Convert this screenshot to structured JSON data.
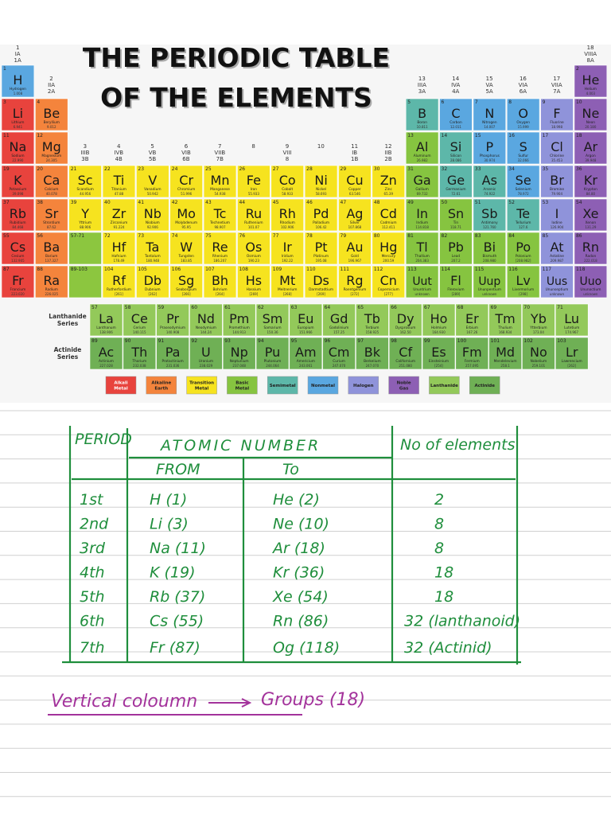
{
  "header": {
    "title_lines": [
      "THE PERIODIC TABLE",
      "OF THE ELEMENTS"
    ]
  },
  "groups": [
    [
      "1",
      "IA",
      "1A"
    ],
    [
      "2",
      "IIA",
      "2A"
    ],
    [
      "3",
      "IIIB",
      "3B"
    ],
    [
      "4",
      "IVB",
      "4B"
    ],
    [
      "5",
      "VB",
      "5B"
    ],
    [
      "6",
      "VIB",
      "6B"
    ],
    [
      "7",
      "VIIB",
      "7B"
    ],
    [
      "8"
    ],
    [
      "9",
      "VIII",
      "8"
    ],
    [
      "10"
    ],
    [
      "11",
      "IB",
      "1B"
    ],
    [
      "12",
      "IIB",
      "2B"
    ],
    [
      "13",
      "IIIA",
      "3A"
    ],
    [
      "14",
      "IVA",
      "4A"
    ],
    [
      "15",
      "VA",
      "5A"
    ],
    [
      "16",
      "VIA",
      "6A"
    ],
    [
      "17",
      "VIIA",
      "7A"
    ],
    [
      "18",
      "VIIIA",
      "8A"
    ]
  ],
  "placeholders": [
    "57-71",
    "89-103"
  ],
  "series_labels": [
    [
      "Lanthanide",
      "Series"
    ],
    [
      "Actinide",
      "Series"
    ]
  ],
  "categories": [
    {
      "label": [
        "Alkali",
        "Metal"
      ],
      "color": "#e8433d",
      "elements": [
        [
          3,
          "Li",
          "Lithium",
          "6.941"
        ],
        [
          11,
          "Na",
          "Sodium",
          "22.990"
        ],
        [
          19,
          "K",
          "Potassium",
          "39.098"
        ],
        [
          37,
          "Rb",
          "Rubidium",
          "84.468"
        ],
        [
          55,
          "Cs",
          "Cesium",
          "132.905"
        ],
        [
          87,
          "Fr",
          "Francium",
          "223.020"
        ]
      ]
    },
    {
      "label": [
        "Alkaline",
        "Earth"
      ],
      "color": "#f4843c",
      "elements": [
        [
          4,
          "Be",
          "Beryllium",
          "9.012"
        ],
        [
          12,
          "Mg",
          "Magnesium",
          "24.305"
        ],
        [
          20,
          "Ca",
          "Calcium",
          "40.078"
        ],
        [
          38,
          "Sr",
          "Strontium",
          "87.62"
        ],
        [
          56,
          "Ba",
          "Barium",
          "137.327"
        ],
        [
          88,
          "Ra",
          "Radium",
          "226.025"
        ]
      ]
    },
    {
      "label": [
        "Transition",
        "Metal"
      ],
      "color": "#f6e31f",
      "elements": [
        [
          21,
          "Sc",
          "Scandium",
          "44.956"
        ],
        [
          22,
          "Ti",
          "Titanium",
          "47.88"
        ],
        [
          23,
          "V",
          "Vanadium",
          "50.942"
        ],
        [
          24,
          "Cr",
          "Chromium",
          "51.996"
        ],
        [
          25,
          "Mn",
          "Manganese",
          "54.938"
        ],
        [
          26,
          "Fe",
          "Iron",
          "55.933"
        ],
        [
          27,
          "Co",
          "Cobalt",
          "58.933"
        ],
        [
          28,
          "Ni",
          "Nickel",
          "58.693"
        ],
        [
          29,
          "Cu",
          "Copper",
          "63.546"
        ],
        [
          30,
          "Zn",
          "Zinc",
          "65.39"
        ],
        [
          39,
          "Y",
          "Yttrium",
          "88.906"
        ],
        [
          40,
          "Zr",
          "Zirconium",
          "91.224"
        ],
        [
          41,
          "Nb",
          "Niobium",
          "92.906"
        ],
        [
          42,
          "Mo",
          "Molybdenum",
          "95.95"
        ],
        [
          43,
          "Tc",
          "Technetium",
          "98.907"
        ],
        [
          44,
          "Ru",
          "Ruthenium",
          "101.07"
        ],
        [
          45,
          "Rh",
          "Rhodium",
          "102.906"
        ],
        [
          46,
          "Pd",
          "Palladium",
          "106.42"
        ],
        [
          47,
          "Ag",
          "Silver",
          "107.868"
        ],
        [
          48,
          "Cd",
          "Cadmium",
          "112.411"
        ],
        [
          72,
          "Hf",
          "Hafnium",
          "178.49"
        ],
        [
          73,
          "Ta",
          "Tantalum",
          "180.948"
        ],
        [
          74,
          "W",
          "Tungsten",
          "183.85"
        ],
        [
          75,
          "Re",
          "Rhenium",
          "186.207"
        ],
        [
          76,
          "Os",
          "Osmium",
          "190.23"
        ],
        [
          77,
          "Ir",
          "Iridium",
          "192.22"
        ],
        [
          78,
          "Pt",
          "Platinum",
          "195.08"
        ],
        [
          79,
          "Au",
          "Gold",
          "196.967"
        ],
        [
          80,
          "Hg",
          "Mercury",
          "200.59"
        ],
        [
          104,
          "Rf",
          "Rutherfordium",
          "[261]"
        ],
        [
          105,
          "Db",
          "Dubnium",
          "[262]"
        ],
        [
          106,
          "Sg",
          "Seaborgium",
          "[266]"
        ],
        [
          107,
          "Bh",
          "Bohrium",
          "[264]"
        ],
        [
          108,
          "Hs",
          "Hassium",
          "[269]"
        ],
        [
          109,
          "Mt",
          "Meitnerium",
          "[268]"
        ],
        [
          110,
          "Ds",
          "Darmstadtium",
          "[269]"
        ],
        [
          111,
          "Rg",
          "Roentgenium",
          "[272]"
        ],
        [
          112,
          "Cn",
          "Copernicium",
          "[277]"
        ]
      ]
    },
    {
      "label": [
        "Basic",
        "Metal"
      ],
      "color": "#86c440",
      "elements": [
        [
          13,
          "Al",
          "Aluminum",
          "26.982"
        ],
        [
          31,
          "Ga",
          "Gallium",
          "69.732"
        ],
        [
          49,
          "In",
          "Indium",
          "114.818"
        ],
        [
          50,
          "Sn",
          "Tin",
          "118.71"
        ],
        [
          81,
          "Tl",
          "Thallium",
          "204.383"
        ],
        [
          82,
          "Pb",
          "Lead",
          "207.2"
        ],
        [
          83,
          "Bi",
          "Bismuth",
          "208.980"
        ],
        [
          84,
          "Po",
          "Polonium",
          "[208.982]"
        ],
        [
          113,
          "Uut",
          "Ununtrium",
          "unknown"
        ],
        [
          114,
          "Fl",
          "Flerovium",
          "[289]"
        ],
        [
          115,
          "Uup",
          "Ununpentium",
          "unknown"
        ],
        [
          116,
          "Lv",
          "Livermorium",
          "[298]"
        ]
      ]
    },
    {
      "label": [
        "Semimetal"
      ],
      "color": "#5db7a9",
      "elements": [
        [
          5,
          "B",
          "Boron",
          "10.811"
        ],
        [
          14,
          "Si",
          "Silicon",
          "28.086"
        ],
        [
          32,
          "Ge",
          "Germanium",
          "72.61"
        ],
        [
          33,
          "As",
          "Arsenic",
          "74.922"
        ],
        [
          51,
          "Sb",
          "Antimony",
          "121.760"
        ],
        [
          52,
          "Te",
          "Tellurium",
          "127.6"
        ]
      ]
    },
    {
      "label": [
        "Nonmetal"
      ],
      "color": "#5aa7e0",
      "elements": [
        [
          1,
          "H",
          "Hydrogen",
          "1.008"
        ],
        [
          6,
          "C",
          "Carbon",
          "12.011"
        ],
        [
          7,
          "N",
          "Nitrogen",
          "14.007"
        ],
        [
          8,
          "O",
          "Oxygen",
          "15.999"
        ],
        [
          15,
          "P",
          "Phosphorus",
          "30.974"
        ],
        [
          16,
          "S",
          "Sulfur",
          "32.066"
        ],
        [
          34,
          "Se",
          "Selenium",
          "78.972"
        ]
      ]
    },
    {
      "label": [
        "Halogen"
      ],
      "color": "#8f93da",
      "elements": [
        [
          9,
          "F",
          "Fluorine",
          "18.998"
        ],
        [
          17,
          "Cl",
          "Chlorine",
          "35.453"
        ],
        [
          35,
          "Br",
          "Bromine",
          "79.904"
        ],
        [
          53,
          "I",
          "Iodine",
          "126.904"
        ],
        [
          85,
          "At",
          "Astatine",
          "209.987"
        ],
        [
          117,
          "Uus",
          "Ununseptium",
          "unknown"
        ]
      ]
    },
    {
      "label": [
        "Noble",
        "Gas"
      ],
      "color": "#8d5fb4",
      "elements": [
        [
          2,
          "He",
          "Helium",
          "4.003"
        ],
        [
          10,
          "Ne",
          "Neon",
          "20.180"
        ],
        [
          18,
          "Ar",
          "Argon",
          "39.948"
        ],
        [
          36,
          "Kr",
          "Krypton",
          "84.80"
        ],
        [
          54,
          "Xe",
          "Xenon",
          "131.29"
        ],
        [
          86,
          "Rn",
          "Radon",
          "222.018"
        ],
        [
          118,
          "Uuo",
          "Ununoctium",
          "unknown"
        ]
      ]
    },
    {
      "label": [
        "Lanthanide"
      ],
      "color": "#93c95a",
      "elements": [
        [
          57,
          "La",
          "Lanthanum",
          "138.906"
        ],
        [
          58,
          "Ce",
          "Cerium",
          "140.115"
        ],
        [
          59,
          "Pr",
          "Praseodymium",
          "140.908"
        ],
        [
          60,
          "Nd",
          "Neodymium",
          "144.24"
        ],
        [
          61,
          "Pm",
          "Promethium",
          "144.913"
        ],
        [
          62,
          "Sm",
          "Samarium",
          "150.36"
        ],
        [
          63,
          "Eu",
          "Europium",
          "151.966"
        ],
        [
          64,
          "Gd",
          "Gadolinium",
          "157.25"
        ],
        [
          65,
          "Tb",
          "Terbium",
          "158.925"
        ],
        [
          66,
          "Dy",
          "Dysprosium",
          "162.50"
        ],
        [
          67,
          "Ho",
          "Holmium",
          "164.930"
        ],
        [
          68,
          "Er",
          "Erbium",
          "167.26"
        ],
        [
          69,
          "Tm",
          "Thulium",
          "168.934"
        ],
        [
          70,
          "Yb",
          "Ytterbium",
          "173.04"
        ],
        [
          71,
          "Lu",
          "Lutetium",
          "174.967"
        ]
      ]
    },
    {
      "label": [
        "Actinide"
      ],
      "color": "#6fb055",
      "elements": [
        [
          89,
          "Ac",
          "Actinium",
          "227.028"
        ],
        [
          90,
          "Th",
          "Thorium",
          "232.038"
        ],
        [
          91,
          "Pa",
          "Protactinium",
          "231.036"
        ],
        [
          92,
          "U",
          "Uranium",
          "238.029"
        ],
        [
          93,
          "Np",
          "Neptunium",
          "237.048"
        ],
        [
          94,
          "Pu",
          "Plutonium",
          "244.064"
        ],
        [
          95,
          "Am",
          "Americium",
          "243.061"
        ],
        [
          96,
          "Cm",
          "Curium",
          "247.070"
        ],
        [
          97,
          "Bk",
          "Berkelium",
          "247.070"
        ],
        [
          98,
          "Cf",
          "Californium",
          "251.080"
        ],
        [
          99,
          "Es",
          "Einsteinium",
          "[254]"
        ],
        [
          100,
          "Fm",
          "Fermium",
          "257.095"
        ],
        [
          101,
          "Md",
          "Mendelevium",
          "258.1"
        ],
        [
          102,
          "No",
          "Nobelium",
          "259.101"
        ],
        [
          103,
          "Lr",
          "Lawrencium",
          "[262]"
        ]
      ]
    }
  ],
  "notes": {
    "headers": {
      "period": "PERIOD",
      "atomic_number": "ATOMIC NUMBER",
      "from": "FROM",
      "to": "To",
      "count": "No of elements"
    },
    "rows": [
      [
        "1st",
        "H (1)",
        "He (2)",
        "2"
      ],
      [
        "2nd",
        "Li (3)",
        "Ne (10)",
        "8"
      ],
      [
        "3rd",
        "Na (11)",
        "Ar (18)",
        "8"
      ],
      [
        "4th",
        "K (19)",
        "Kr (36)",
        "18"
      ],
      [
        "5th",
        "Rb (37)",
        "Xe (54)",
        "18"
      ],
      [
        "6th",
        "Cs (55)",
        "Rn (86)",
        "32 (lanthanoid)"
      ],
      [
        "7th",
        "Fr (87)",
        "Og (118)",
        "32 (Actinid)"
      ]
    ],
    "footer": {
      "left": "Vertical coloumn",
      "right": "Groups (18)"
    }
  }
}
